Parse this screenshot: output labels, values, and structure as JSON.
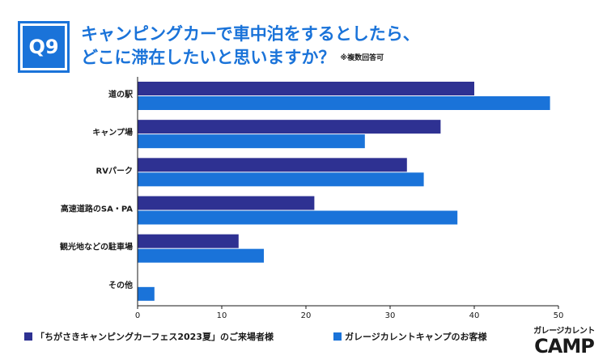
{
  "badge": "Q9",
  "title_line1": "キャンピングカーで車中泊をするとしたら、",
  "title_line2": "どこに滞在したいと思いますか？",
  "title_note": "※複数回答可",
  "logo": {
    "top": "ガレージカレント",
    "bottom": "CAMP"
  },
  "colors": {
    "series1": "#2e3192",
    "series2": "#1a73d9",
    "accent": "#1a73d9"
  },
  "chart_data": {
    "type": "bar",
    "orientation": "horizontal",
    "categories": [
      "道の駅",
      "キャンプ場",
      "RVパーク",
      "高速道路のSA・PA",
      "観光地などの駐車場",
      "その他"
    ],
    "series": [
      {
        "name": "「ちがさきキャンピングカーフェス2023夏」のご来場者様",
        "values": [
          40,
          36,
          32,
          21,
          12,
          0
        ]
      },
      {
        "name": "ガレージカレントキャンプのお客様",
        "values": [
          49,
          27,
          34,
          38,
          15,
          2
        ]
      }
    ],
    "xlim": [
      0,
      50
    ],
    "xticks": [
      0,
      10,
      20,
      30,
      40,
      50
    ],
    "grid": false
  }
}
